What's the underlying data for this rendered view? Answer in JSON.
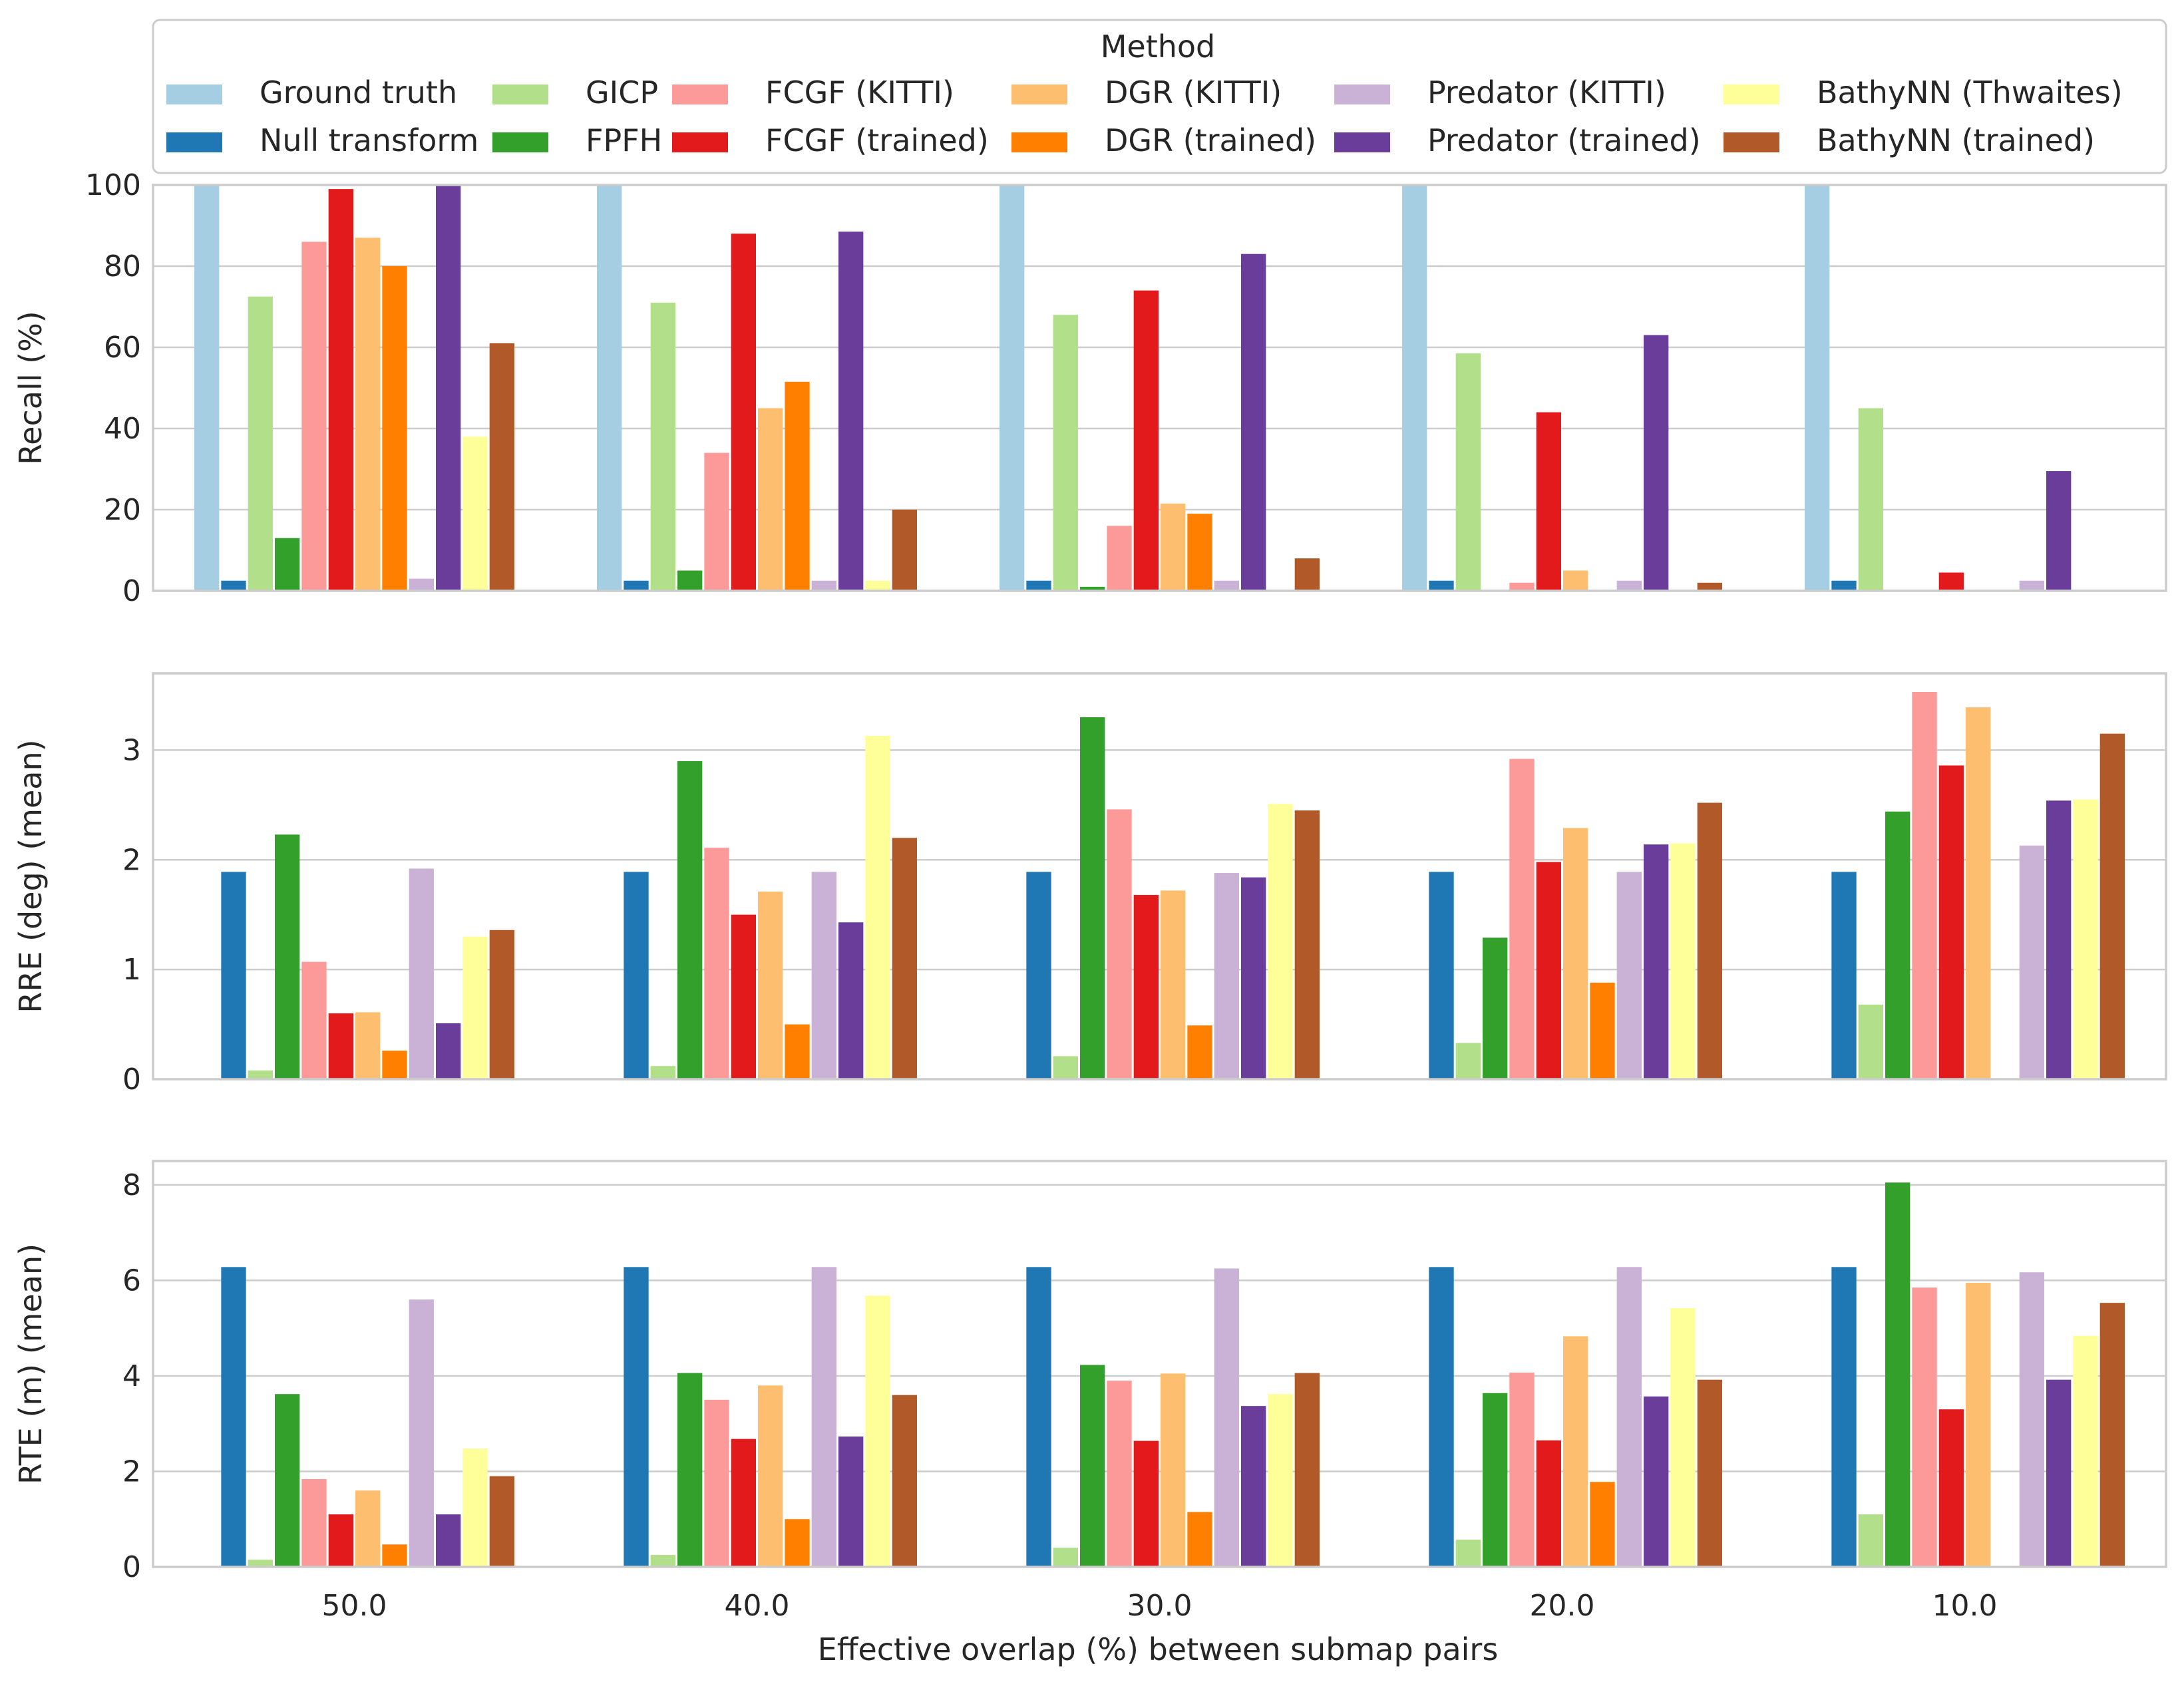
{
  "chart_data": {
    "type": "bar",
    "xlabel": "Effective overlap (%) between submap pairs",
    "categories": [
      "50.0",
      "40.0",
      "30.0",
      "20.0",
      "10.0"
    ],
    "legend": {
      "title": "Method",
      "placement": "top",
      "methods": [
        "Ground truth",
        "Null transform",
        "GICP",
        "FPFH",
        "FCGF (KITTI)",
        "FCGF (trained)",
        "DGR (KITTI)",
        "DGR (trained)",
        "Predator (KITTI)",
        "Predator (trained)",
        "BathyNN (Thwaites)",
        "BathyNN (trained)"
      ],
      "colors": [
        "#a6cee3",
        "#1f78b4",
        "#b2df8a",
        "#33a02c",
        "#fb9a99",
        "#e31a1c",
        "#fdbf6f",
        "#ff7f00",
        "#cab2d6",
        "#6a3d9a",
        "#ffff99",
        "#b15928"
      ]
    },
    "panels": [
      {
        "ylabel": "Recall (%)",
        "ylim": [
          0,
          100
        ],
        "yticks": [
          "0",
          "20",
          "40",
          "60",
          "80",
          "100"
        ],
        "ytick_values": [
          0,
          20,
          40,
          60,
          80,
          100
        ],
        "series": [
          {
            "name": "Ground truth",
            "values": [
              100,
              100,
              100,
              100,
              100
            ]
          },
          {
            "name": "Null transform",
            "values": [
              2.5,
              2.5,
              2.5,
              2.5,
              2.5
            ]
          },
          {
            "name": "GICP",
            "values": [
              72.5,
              71,
              68,
              58.5,
              45
            ]
          },
          {
            "name": "FPFH",
            "values": [
              13,
              5,
              1,
              0,
              0
            ]
          },
          {
            "name": "FCGF (KITTI)",
            "values": [
              86,
              34,
              16,
              2,
              0
            ]
          },
          {
            "name": "FCGF (trained)",
            "values": [
              99,
              88,
              74,
              44,
              4.5
            ]
          },
          {
            "name": "DGR (KITTI)",
            "values": [
              87,
              45,
              21.5,
              5,
              0
            ]
          },
          {
            "name": "DGR (trained)",
            "values": [
              80,
              51.5,
              19,
              0,
              0
            ]
          },
          {
            "name": "Predator (KITTI)",
            "values": [
              3,
              2.5,
              2.5,
              2.5,
              2.5
            ]
          },
          {
            "name": "Predator (trained)",
            "values": [
              100,
              88.5,
              83,
              63,
              29.5
            ]
          },
          {
            "name": "BathyNN (Thwaites)",
            "values": [
              38,
              2.5,
              0,
              0,
              0
            ]
          },
          {
            "name": "BathyNN (trained)",
            "values": [
              61,
              20,
              8,
              2,
              0
            ]
          }
        ]
      },
      {
        "ylabel": "RRE (deg) (mean)",
        "ylim": [
          0,
          3.7
        ],
        "yticks": [
          "0",
          "1",
          "2",
          "3"
        ],
        "ytick_values": [
          0,
          1,
          2,
          3
        ],
        "series": [
          {
            "name": "Ground truth",
            "values": [
              0,
              0,
              0,
              0,
              0
            ]
          },
          {
            "name": "Null transform",
            "values": [
              1.89,
              1.89,
              1.89,
              1.89,
              1.89
            ]
          },
          {
            "name": "GICP",
            "values": [
              0.08,
              0.12,
              0.21,
              0.33,
              0.68
            ]
          },
          {
            "name": "FPFH",
            "values": [
              2.23,
              2.9,
              3.3,
              1.29,
              2.44
            ]
          },
          {
            "name": "FCGF (KITTI)",
            "values": [
              1.07,
              2.11,
              2.46,
              2.92,
              3.53
            ]
          },
          {
            "name": "FCGF (trained)",
            "values": [
              0.6,
              1.5,
              1.68,
              1.98,
              2.86
            ]
          },
          {
            "name": "DGR (KITTI)",
            "values": [
              0.61,
              1.71,
              1.72,
              2.29,
              3.39
            ]
          },
          {
            "name": "DGR (trained)",
            "values": [
              0.26,
              0.5,
              0.49,
              0.88,
              0
            ]
          },
          {
            "name": "Predator (KITTI)",
            "values": [
              1.92,
              1.89,
              1.88,
              1.89,
              2.13
            ]
          },
          {
            "name": "Predator (trained)",
            "values": [
              0.51,
              1.43,
              1.84,
              2.14,
              2.54
            ]
          },
          {
            "name": "BathyNN (Thwaites)",
            "values": [
              1.3,
              3.13,
              2.51,
              2.15,
              2.55
            ]
          },
          {
            "name": "BathyNN (trained)",
            "values": [
              1.36,
              2.2,
              2.45,
              2.52,
              3.15
            ]
          }
        ]
      },
      {
        "ylabel": "RTE (m) (mean)",
        "ylim": [
          0,
          8.5
        ],
        "yticks": [
          "0",
          "2",
          "4",
          "6",
          "8"
        ],
        "ytick_values": [
          0,
          2,
          4,
          6,
          8
        ],
        "series": [
          {
            "name": "Ground truth",
            "values": [
              0,
              0,
              0,
              0,
              0
            ]
          },
          {
            "name": "Null transform",
            "values": [
              6.28,
              6.28,
              6.28,
              6.28,
              6.28
            ]
          },
          {
            "name": "GICP",
            "values": [
              0.15,
              0.25,
              0.4,
              0.57,
              1.1
            ]
          },
          {
            "name": "FPFH",
            "values": [
              3.62,
              4.06,
              4.23,
              3.64,
              8.05
            ]
          },
          {
            "name": "FCGF (KITTI)",
            "values": [
              1.84,
              3.5,
              3.9,
              4.07,
              5.85
            ]
          },
          {
            "name": "FCGF (trained)",
            "values": [
              1.1,
              2.68,
              2.64,
              2.65,
              3.3
            ]
          },
          {
            "name": "DGR (KITTI)",
            "values": [
              1.6,
              3.8,
              4.05,
              4.83,
              5.95
            ]
          },
          {
            "name": "DGR (trained)",
            "values": [
              0.47,
              1.0,
              1.15,
              1.78,
              0
            ]
          },
          {
            "name": "Predator (KITTI)",
            "values": [
              5.6,
              6.28,
              6.25,
              6.28,
              6.17
            ]
          },
          {
            "name": "Predator (trained)",
            "values": [
              1.1,
              2.73,
              3.37,
              3.57,
              3.92
            ]
          },
          {
            "name": "BathyNN (Thwaites)",
            "values": [
              2.48,
              5.68,
              3.62,
              5.42,
              4.84
            ]
          },
          {
            "name": "BathyNN (trained)",
            "values": [
              1.9,
              3.6,
              4.06,
              3.92,
              5.53
            ]
          }
        ]
      }
    ]
  }
}
